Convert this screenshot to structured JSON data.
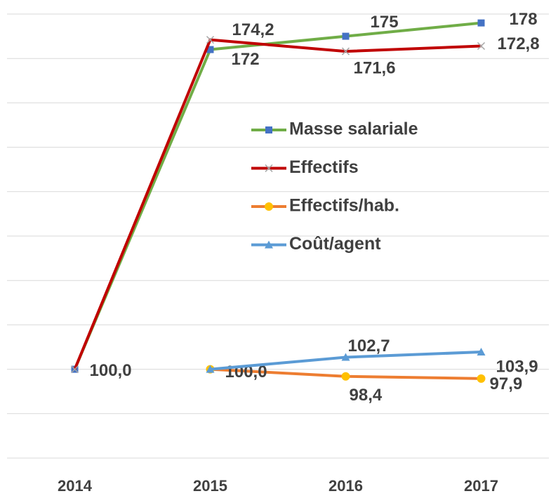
{
  "chart_data": {
    "type": "line",
    "categories": [
      "2014",
      "2015",
      "2016",
      "2017"
    ],
    "ylim": [
      80,
      180
    ],
    "yticks": [
      80,
      90,
      100,
      110,
      120,
      130,
      140,
      150,
      160,
      170,
      180
    ],
    "grid": true,
    "series": [
      {
        "name": "Masse salariale",
        "color": "#70ad47",
        "marker": "square",
        "marker_color": "#4472c4",
        "values": [
          100,
          172,
          175,
          178
        ],
        "value_labels": [
          null,
          "172",
          "175",
          "178"
        ]
      },
      {
        "name": "Effectifs",
        "color": "#c00000",
        "marker": "x",
        "marker_color": "#a5a5a5",
        "values": [
          100,
          174.2,
          171.6,
          172.8
        ],
        "value_labels": [
          "100,0",
          "174,2",
          "171,6",
          "172,8"
        ]
      },
      {
        "name": "Effectifs/hab.",
        "color": "#ed7d31",
        "marker": "circle",
        "marker_color": "#ffc000",
        "values": [
          null,
          100,
          98.4,
          97.9
        ],
        "value_labels": [
          null,
          "100,0",
          "98,4",
          "97,9"
        ]
      },
      {
        "name": "Coût/agent",
        "color": "#5b9bd5",
        "marker": "triangle",
        "marker_color": "#5b9bd5",
        "values": [
          null,
          100,
          102.7,
          103.9
        ],
        "value_labels": [
          null,
          null,
          "102,7",
          "103,9"
        ]
      }
    ]
  }
}
